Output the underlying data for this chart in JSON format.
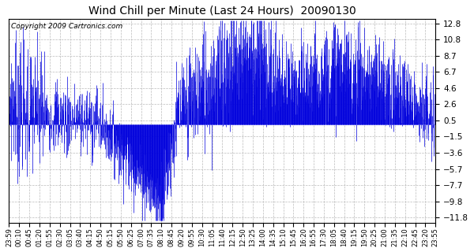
{
  "title": "Wind Chill per Minute (Last 24 Hours)  20090130",
  "copyright_text": "Copyright 2009 Cartronics.com",
  "bar_color": "#0000dd",
  "background_color": "#ffffff",
  "plot_bg_color": "#ffffff",
  "grid_color": "#bbbbbb",
  "yticks": [
    12.8,
    10.8,
    8.7,
    6.7,
    4.6,
    2.6,
    0.5,
    -1.5,
    -3.6,
    -5.7,
    -7.7,
    -9.8,
    -11.8
  ],
  "ylim": [
    -12.5,
    13.5
  ],
  "xtick_labels": [
    "23:59",
    "00:10",
    "00:45",
    "01:20",
    "01:55",
    "02:30",
    "03:05",
    "03:40",
    "04:15",
    "04:50",
    "05:15",
    "05:50",
    "06:25",
    "07:00",
    "07:35",
    "08:10",
    "08:45",
    "09:20",
    "09:55",
    "10:30",
    "11:05",
    "11:40",
    "12:15",
    "12:50",
    "13:25",
    "14:00",
    "14:35",
    "15:10",
    "15:45",
    "16:20",
    "16:55",
    "17:30",
    "18:05",
    "18:40",
    "19:15",
    "19:50",
    "20:25",
    "21:00",
    "21:35",
    "22:10",
    "22:45",
    "23:20",
    "23:55"
  ],
  "seed": 7
}
